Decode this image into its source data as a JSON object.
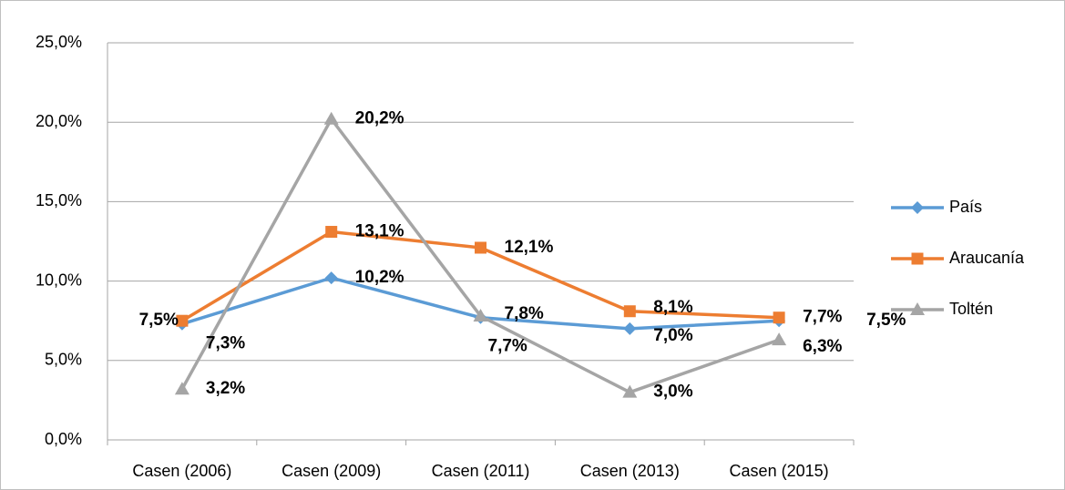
{
  "chart_data": {
    "type": "line",
    "categories": [
      "Casen (2006)",
      "Casen (2009)",
      "Casen (2011)",
      "Casen (2013)",
      "Casen (2015)"
    ],
    "series": [
      {
        "name": "País",
        "color": "#5b9bd5",
        "marker": "diamond",
        "values": [
          7.3,
          10.2,
          7.7,
          7.0,
          7.5
        ],
        "value_labels": [
          "7,3%",
          "10,2%",
          "7,7%",
          "7,0%",
          "7,5%"
        ]
      },
      {
        "name": "Araucanía",
        "color": "#ed7d31",
        "marker": "square",
        "values": [
          7.5,
          13.1,
          12.1,
          8.1,
          7.7
        ],
        "value_labels": [
          "7,5%",
          "13,1%",
          "12,1%",
          "8,1%",
          "7,7%"
        ]
      },
      {
        "name": "Toltén",
        "color": "#a5a5a5",
        "marker": "triangle",
        "values": [
          3.2,
          20.2,
          7.8,
          3.0,
          6.3
        ],
        "value_labels": [
          "3,2%",
          "20,2%",
          "7,8%",
          "3,0%",
          "6,3%"
        ]
      }
    ],
    "ylim": [
      0,
      25
    ],
    "yticks": [
      {
        "value": 0,
        "label": "0,0%"
      },
      {
        "value": 5,
        "label": "5,0%"
      },
      {
        "value": 10,
        "label": "10,0%"
      },
      {
        "value": 15,
        "label": "15,0%"
      },
      {
        "value": 20,
        "label": "20,0%"
      },
      {
        "value": 25,
        "label": "25,0%"
      }
    ],
    "grid": true,
    "legend": "right"
  }
}
